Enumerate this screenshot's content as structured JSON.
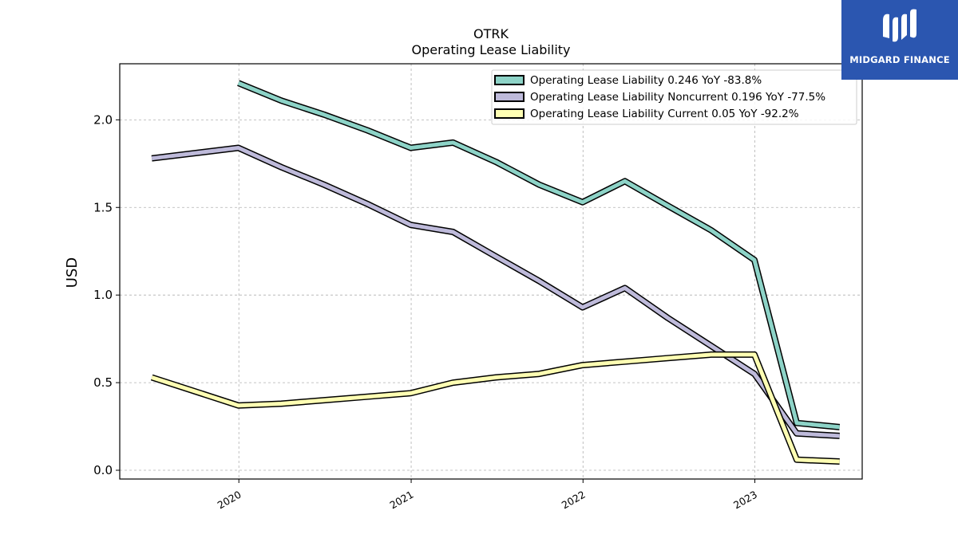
{
  "brand": {
    "name": "MIDGARD FINANCE",
    "color": "#2b56b0"
  },
  "chart_data": {
    "type": "line",
    "title": "OTRK",
    "subtitle": "Operating Lease Liability",
    "ylabel": "USD",
    "xlabel": "",
    "x_ticks": [
      "2020",
      "2021",
      "2022",
      "2023"
    ],
    "y_ticks": [
      "0.0",
      "0.5",
      "1.0",
      "1.5",
      "2.0"
    ],
    "ylim": [
      -0.05,
      2.32
    ],
    "xlim": [
      "2019-04-23",
      "2023-08-17"
    ],
    "grid": true,
    "legend_position": "top-right",
    "series": [
      {
        "name": "Operating Lease Liability  0.246 YoY -83.8%",
        "color": "#8dd3c7",
        "points": [
          [
            "2019-12-31",
            2.21
          ],
          [
            "2020-03-31",
            2.11
          ],
          [
            "2020-06-30",
            2.03
          ],
          [
            "2020-09-30",
            1.94
          ],
          [
            "2020-12-31",
            1.84
          ],
          [
            "2021-03-31",
            1.87
          ],
          [
            "2021-06-30",
            1.76
          ],
          [
            "2021-09-30",
            1.63
          ],
          [
            "2021-12-31",
            1.53
          ],
          [
            "2022-03-31",
            1.65
          ],
          [
            "2022-06-30",
            1.51
          ],
          [
            "2022-09-30",
            1.37
          ],
          [
            "2022-12-31",
            1.2
          ],
          [
            "2023-03-31",
            0.27
          ],
          [
            "2023-06-30",
            0.246
          ]
        ]
      },
      {
        "name": "Operating Lease Liability Noncurrent  0.196 YoY -77.5%",
        "color": "#bebada",
        "points": [
          [
            "2019-06-30",
            1.78
          ],
          [
            "2019-12-31",
            1.84
          ],
          [
            "2020-03-31",
            1.73
          ],
          [
            "2020-06-30",
            1.63
          ],
          [
            "2020-09-30",
            1.52
          ],
          [
            "2020-12-31",
            1.4
          ],
          [
            "2021-03-31",
            1.36
          ],
          [
            "2021-06-30",
            1.22
          ],
          [
            "2021-09-30",
            1.08
          ],
          [
            "2021-12-31",
            0.93
          ],
          [
            "2022-03-31",
            1.04
          ],
          [
            "2022-06-30",
            0.87
          ],
          [
            "2022-09-30",
            0.71
          ],
          [
            "2022-12-31",
            0.55
          ],
          [
            "2023-03-31",
            0.21
          ],
          [
            "2023-06-30",
            0.196
          ]
        ]
      },
      {
        "name": "Operating Lease Liability Current  0.05 YoY -92.2%",
        "color": "#ffffb3",
        "points": [
          [
            "2019-06-30",
            0.53
          ],
          [
            "2019-12-31",
            0.37
          ],
          [
            "2020-03-31",
            0.38
          ],
          [
            "2020-06-30",
            0.4
          ],
          [
            "2020-09-30",
            0.42
          ],
          [
            "2020-12-31",
            0.44
          ],
          [
            "2021-03-31",
            0.5
          ],
          [
            "2021-06-30",
            0.53
          ],
          [
            "2021-09-30",
            0.55
          ],
          [
            "2021-12-31",
            0.6
          ],
          [
            "2022-03-31",
            0.62
          ],
          [
            "2022-06-30",
            0.64
          ],
          [
            "2022-09-30",
            0.66
          ],
          [
            "2022-12-31",
            0.66
          ],
          [
            "2023-03-31",
            0.06
          ],
          [
            "2023-06-30",
            0.05
          ]
        ]
      }
    ]
  }
}
